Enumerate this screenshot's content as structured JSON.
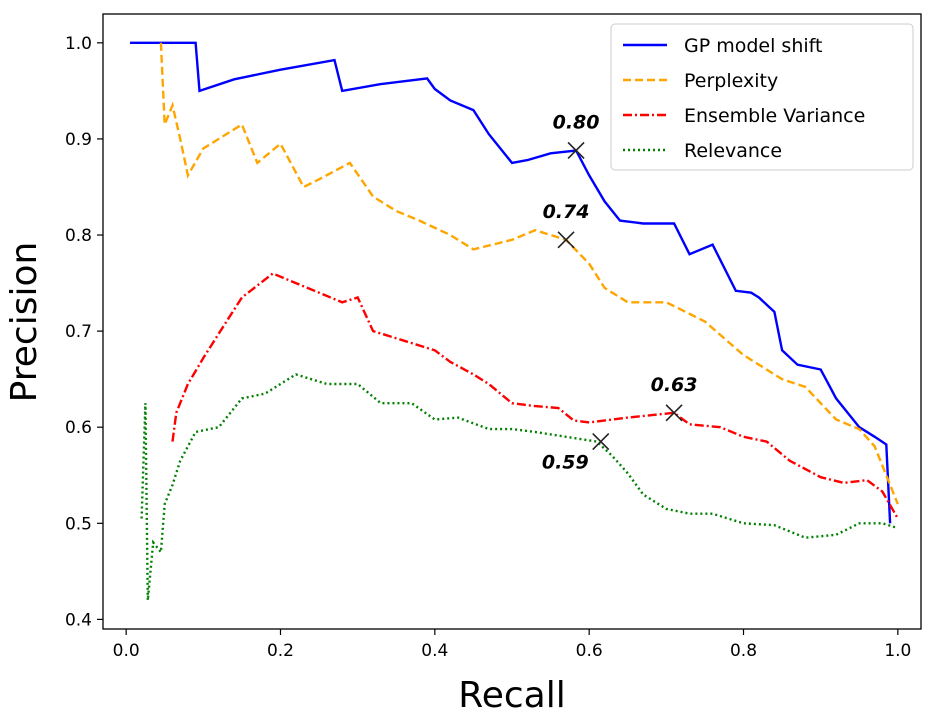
{
  "chart_data": {
    "type": "line",
    "title": "",
    "xlabel": "Recall",
    "ylabel": "Precision",
    "xlim": [
      -0.03,
      1.03
    ],
    "ylim": [
      0.39,
      1.03
    ],
    "xticks": [
      0.0,
      0.2,
      0.4,
      0.6,
      0.8,
      1.0
    ],
    "xtick_labels": [
      "0.0",
      "0.2",
      "0.4",
      "0.6",
      "0.8",
      "1.0"
    ],
    "yticks": [
      0.4,
      0.5,
      0.6,
      0.7,
      0.8,
      0.9,
      1.0
    ],
    "ytick_labels": [
      "0.4",
      "0.5",
      "0.6",
      "0.7",
      "0.8",
      "0.9",
      "1.0"
    ],
    "grid": false,
    "legend_position": "top-right",
    "series": [
      {
        "name": "GP model shift",
        "color": "#0000ff",
        "style": "solid",
        "points": [
          [
            0.005,
            1.0
          ],
          [
            0.09,
            1.0
          ],
          [
            0.095,
            0.95
          ],
          [
            0.14,
            0.962
          ],
          [
            0.2,
            0.972
          ],
          [
            0.27,
            0.982
          ],
          [
            0.28,
            0.95
          ],
          [
            0.33,
            0.957
          ],
          [
            0.39,
            0.963
          ],
          [
            0.4,
            0.952
          ],
          [
            0.42,
            0.94
          ],
          [
            0.45,
            0.93
          ],
          [
            0.47,
            0.905
          ],
          [
            0.5,
            0.875
          ],
          [
            0.52,
            0.878
          ],
          [
            0.55,
            0.885
          ],
          [
            0.583,
            0.888
          ],
          [
            0.6,
            0.862
          ],
          [
            0.62,
            0.835
          ],
          [
            0.64,
            0.815
          ],
          [
            0.67,
            0.812
          ],
          [
            0.71,
            0.812
          ],
          [
            0.73,
            0.78
          ],
          [
            0.76,
            0.79
          ],
          [
            0.79,
            0.742
          ],
          [
            0.81,
            0.74
          ],
          [
            0.82,
            0.735
          ],
          [
            0.84,
            0.72
          ],
          [
            0.85,
            0.68
          ],
          [
            0.87,
            0.665
          ],
          [
            0.9,
            0.66
          ],
          [
            0.92,
            0.63
          ],
          [
            0.95,
            0.6
          ],
          [
            0.97,
            0.59
          ],
          [
            0.985,
            0.582
          ],
          [
            0.99,
            0.5
          ]
        ]
      },
      {
        "name": "Perplexity",
        "color": "#ffa500",
        "style": "dashed",
        "points": [
          [
            0.045,
            1.0
          ],
          [
            0.05,
            0.915
          ],
          [
            0.06,
            0.935
          ],
          [
            0.07,
            0.9
          ],
          [
            0.08,
            0.862
          ],
          [
            0.1,
            0.89
          ],
          [
            0.15,
            0.915
          ],
          [
            0.17,
            0.875
          ],
          [
            0.2,
            0.895
          ],
          [
            0.23,
            0.85
          ],
          [
            0.25,
            0.858
          ],
          [
            0.29,
            0.875
          ],
          [
            0.32,
            0.84
          ],
          [
            0.35,
            0.825
          ],
          [
            0.38,
            0.815
          ],
          [
            0.42,
            0.8
          ],
          [
            0.45,
            0.785
          ],
          [
            0.5,
            0.795
          ],
          [
            0.53,
            0.805
          ],
          [
            0.57,
            0.795
          ],
          [
            0.6,
            0.77
          ],
          [
            0.62,
            0.745
          ],
          [
            0.65,
            0.73
          ],
          [
            0.7,
            0.73
          ],
          [
            0.75,
            0.71
          ],
          [
            0.8,
            0.675
          ],
          [
            0.82,
            0.665
          ],
          [
            0.85,
            0.65
          ],
          [
            0.88,
            0.642
          ],
          [
            0.92,
            0.608
          ],
          [
            0.95,
            0.598
          ],
          [
            0.97,
            0.58
          ],
          [
            1.0,
            0.52
          ]
        ]
      },
      {
        "name": "Ensemble Variance",
        "color": "#ff0000",
        "style": "dashdot",
        "points": [
          [
            0.06,
            0.585
          ],
          [
            0.065,
            0.615
          ],
          [
            0.08,
            0.645
          ],
          [
            0.1,
            0.672
          ],
          [
            0.13,
            0.71
          ],
          [
            0.15,
            0.735
          ],
          [
            0.19,
            0.76
          ],
          [
            0.22,
            0.75
          ],
          [
            0.25,
            0.74
          ],
          [
            0.28,
            0.73
          ],
          [
            0.3,
            0.735
          ],
          [
            0.32,
            0.7
          ],
          [
            0.36,
            0.69
          ],
          [
            0.4,
            0.68
          ],
          [
            0.42,
            0.668
          ],
          [
            0.45,
            0.655
          ],
          [
            0.47,
            0.645
          ],
          [
            0.5,
            0.625
          ],
          [
            0.53,
            0.622
          ],
          [
            0.56,
            0.62
          ],
          [
            0.58,
            0.607
          ],
          [
            0.6,
            0.605
          ],
          [
            0.65,
            0.61
          ],
          [
            0.71,
            0.615
          ],
          [
            0.73,
            0.603
          ],
          [
            0.77,
            0.6
          ],
          [
            0.8,
            0.59
          ],
          [
            0.83,
            0.585
          ],
          [
            0.86,
            0.565
          ],
          [
            0.9,
            0.548
          ],
          [
            0.93,
            0.542
          ],
          [
            0.96,
            0.545
          ],
          [
            0.98,
            0.533
          ],
          [
            1.0,
            0.505
          ]
        ]
      },
      {
        "name": "Relevance",
        "color": "#008000",
        "style": "dotted",
        "points": [
          [
            0.02,
            0.505
          ],
          [
            0.025,
            0.625
          ],
          [
            0.028,
            0.42
          ],
          [
            0.035,
            0.48
          ],
          [
            0.045,
            0.47
          ],
          [
            0.05,
            0.52
          ],
          [
            0.06,
            0.54
          ],
          [
            0.07,
            0.565
          ],
          [
            0.09,
            0.595
          ],
          [
            0.12,
            0.6
          ],
          [
            0.15,
            0.63
          ],
          [
            0.18,
            0.635
          ],
          [
            0.22,
            0.655
          ],
          [
            0.26,
            0.645
          ],
          [
            0.3,
            0.645
          ],
          [
            0.33,
            0.625
          ],
          [
            0.37,
            0.625
          ],
          [
            0.4,
            0.608
          ],
          [
            0.43,
            0.61
          ],
          [
            0.47,
            0.598
          ],
          [
            0.5,
            0.598
          ],
          [
            0.53,
            0.595
          ],
          [
            0.57,
            0.59
          ],
          [
            0.61,
            0.585
          ],
          [
            0.63,
            0.57
          ],
          [
            0.65,
            0.552
          ],
          [
            0.67,
            0.53
          ],
          [
            0.7,
            0.515
          ],
          [
            0.73,
            0.51
          ],
          [
            0.76,
            0.51
          ],
          [
            0.8,
            0.5
          ],
          [
            0.84,
            0.498
          ],
          [
            0.88,
            0.485
          ],
          [
            0.92,
            0.488
          ],
          [
            0.95,
            0.5
          ],
          [
            0.98,
            0.5
          ],
          [
            1.0,
            0.495
          ]
        ]
      }
    ],
    "markers": [
      {
        "x": 0.583,
        "y": 0.888,
        "label": "0.80",
        "label_pos": "above"
      },
      {
        "x": 0.57,
        "y": 0.795,
        "label": "0.74",
        "label_pos": "above"
      },
      {
        "x": 0.71,
        "y": 0.615,
        "label": "0.63",
        "label_pos": "above"
      },
      {
        "x": 0.615,
        "y": 0.585,
        "label": "0.59",
        "label_pos": "below-left"
      }
    ]
  }
}
